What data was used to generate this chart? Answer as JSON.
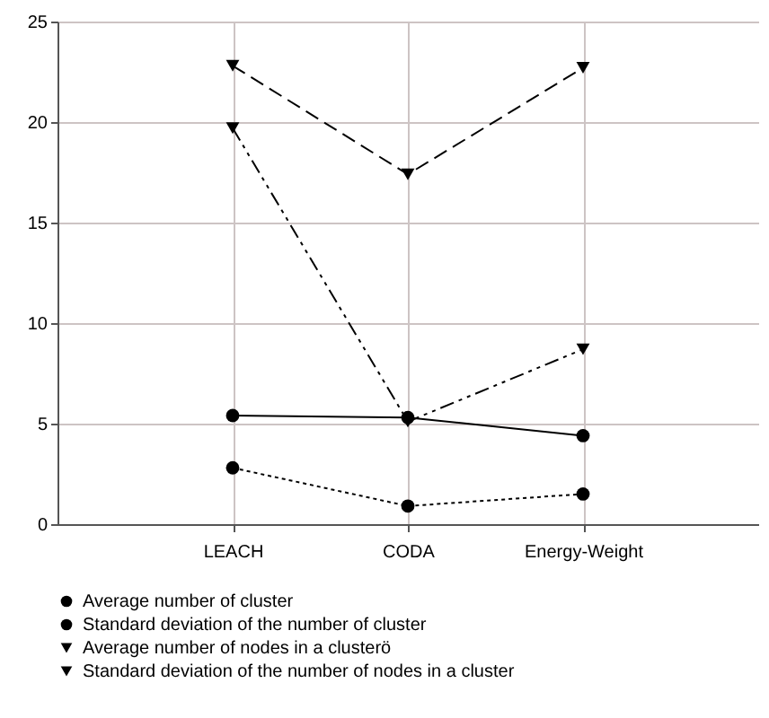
{
  "chart_data": {
    "type": "line",
    "categories": [
      "LEACH",
      "CODA",
      "Energy-Weight"
    ],
    "ylim": [
      0,
      25
    ],
    "yticks": [
      0,
      5,
      10,
      15,
      20,
      25
    ],
    "grid": true,
    "legend": "bottom",
    "series": [
      {
        "name": "Average number of cluster",
        "color": "#000000",
        "values": [
          5.4,
          5.3,
          4.4
        ],
        "line_style": "solid",
        "marker": "circle"
      },
      {
        "name": "Standard deviation of the number of cluster",
        "color": "#000000",
        "values": [
          2.8,
          0.9,
          1.5
        ],
        "line_style": "dotted",
        "marker": "circle"
      },
      {
        "name": "Average number of nodes in a clusterö",
        "color": "#000000",
        "values": [
          22.8,
          17.4,
          22.7
        ],
        "line_style": "dashed",
        "marker": "triangle"
      },
      {
        "name": "Standard deviation of the number of nodes in a cluster",
        "color": "#000000",
        "values": [
          19.7,
          5.1,
          8.7
        ],
        "line_style": "dashdot",
        "marker": "triangle"
      }
    ]
  }
}
